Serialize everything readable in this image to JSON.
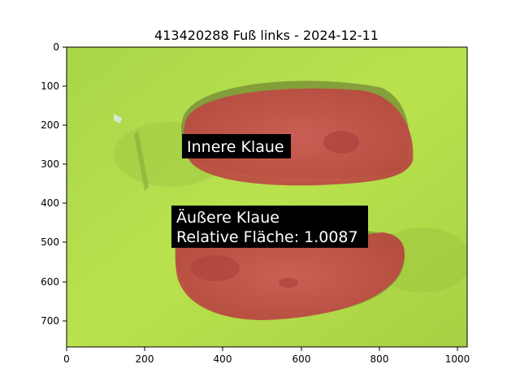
{
  "title": "413420288 Fuß links - 2024-12-11",
  "axes": {
    "xlim": [
      0,
      1024
    ],
    "ylim_top": 0,
    "ylim_bottom": 768,
    "x_ticks": [
      0,
      200,
      400,
      600,
      800,
      1000
    ],
    "y_ticks": [
      0,
      100,
      200,
      300,
      400,
      500,
      600,
      700
    ]
  },
  "annotations": {
    "inner": "Innere Klaue",
    "outer_line1": "Äußere Klaue",
    "outer_line2": "Relative Fläche: 1.0087"
  },
  "colors": {
    "background_green": "#b8e04a",
    "claw_red": "#c9514f",
    "label_box": "#000000"
  },
  "image_description": {
    "subject": "hoof sole photo with two claws highlighted in red",
    "icons": []
  }
}
